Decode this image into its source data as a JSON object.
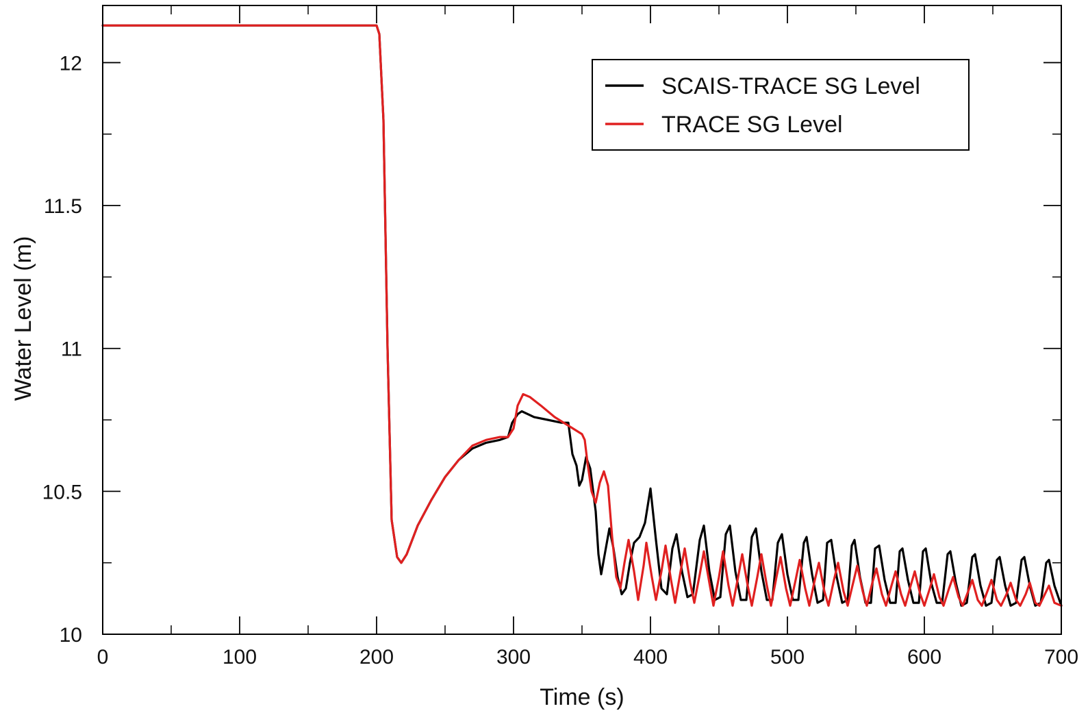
{
  "chart_data": {
    "type": "line",
    "title": "",
    "xlabel": "Time (s)",
    "ylabel": "Water Level (m)",
    "xlim": [
      0,
      700
    ],
    "ylim": [
      10,
      12.2
    ],
    "x_ticks": [
      0,
      100,
      200,
      300,
      400,
      500,
      600,
      700
    ],
    "x_minor_step": 50,
    "y_ticks": [
      10,
      10.5,
      11,
      11.5,
      12
    ],
    "y_tick_labels": [
      "10",
      "10.5",
      "11",
      "11.5",
      "12"
    ],
    "y_minor_step": 0.25,
    "grid": false,
    "legend_position": "top-right",
    "series": [
      {
        "name": "SCAIS-TRACE SG Level",
        "color": "#000000",
        "points": [
          [
            0,
            12.13
          ],
          [
            100,
            12.13
          ],
          [
            195,
            12.13
          ],
          [
            200,
            12.13
          ],
          [
            202,
            12.1
          ],
          [
            205,
            11.8
          ],
          [
            208,
            11.0
          ],
          [
            211,
            10.4
          ],
          [
            215,
            10.27
          ],
          [
            218,
            10.25
          ],
          [
            222,
            10.28
          ],
          [
            230,
            10.38
          ],
          [
            240,
            10.47
          ],
          [
            250,
            10.55
          ],
          [
            260,
            10.61
          ],
          [
            270,
            10.65
          ],
          [
            280,
            10.67
          ],
          [
            290,
            10.68
          ],
          [
            296,
            10.69
          ],
          [
            299,
            10.74
          ],
          [
            303,
            10.77
          ],
          [
            306,
            10.78
          ],
          [
            315,
            10.76
          ],
          [
            325,
            10.75
          ],
          [
            335,
            10.74
          ],
          [
            340,
            10.74
          ],
          [
            343,
            10.63
          ],
          [
            346,
            10.59
          ],
          [
            348,
            10.52
          ],
          [
            350,
            10.54
          ],
          [
            353,
            10.62
          ],
          [
            356,
            10.58
          ],
          [
            360,
            10.43
          ],
          [
            362,
            10.28
          ],
          [
            364,
            10.21
          ],
          [
            367,
            10.29
          ],
          [
            370,
            10.37
          ],
          [
            373,
            10.3
          ],
          [
            376,
            10.2
          ],
          [
            379,
            10.14
          ],
          [
            382,
            10.16
          ],
          [
            385,
            10.25
          ],
          [
            388,
            10.32
          ],
          [
            392,
            10.34
          ],
          [
            396,
            10.39
          ],
          [
            400,
            10.51
          ],
          [
            404,
            10.33
          ],
          [
            408,
            10.16
          ],
          [
            412,
            10.14
          ],
          [
            416,
            10.3
          ],
          [
            419,
            10.35
          ],
          [
            423,
            10.22
          ],
          [
            427,
            10.13
          ],
          [
            431,
            10.14
          ],
          [
            436,
            10.33
          ],
          [
            439,
            10.38
          ],
          [
            443,
            10.22
          ],
          [
            447,
            10.12
          ],
          [
            451,
            10.13
          ],
          [
            455,
            10.35
          ],
          [
            458,
            10.38
          ],
          [
            462,
            10.22
          ],
          [
            466,
            10.12
          ],
          [
            470,
            10.12
          ],
          [
            474,
            10.34
          ],
          [
            477,
            10.37
          ],
          [
            481,
            10.22
          ],
          [
            485,
            10.12
          ],
          [
            489,
            10.12
          ],
          [
            493,
            10.32
          ],
          [
            496,
            10.35
          ],
          [
            500,
            10.21
          ],
          [
            504,
            10.12
          ],
          [
            508,
            10.12
          ],
          [
            512,
            10.32
          ],
          [
            514,
            10.34
          ],
          [
            518,
            10.21
          ],
          [
            522,
            10.11
          ],
          [
            526,
            10.12
          ],
          [
            529,
            10.32
          ],
          [
            532,
            10.33
          ],
          [
            536,
            10.2
          ],
          [
            540,
            10.11
          ],
          [
            544,
            10.12
          ],
          [
            547,
            10.31
          ],
          [
            549,
            10.33
          ],
          [
            553,
            10.2
          ],
          [
            557,
            10.11
          ],
          [
            561,
            10.11
          ],
          [
            564,
            10.3
          ],
          [
            567,
            10.31
          ],
          [
            571,
            10.19
          ],
          [
            575,
            10.11
          ],
          [
            579,
            10.11
          ],
          [
            582,
            10.29
          ],
          [
            584,
            10.3
          ],
          [
            588,
            10.19
          ],
          [
            592,
            10.11
          ],
          [
            596,
            10.11
          ],
          [
            599,
            10.29
          ],
          [
            601,
            10.3
          ],
          [
            605,
            10.18
          ],
          [
            609,
            10.11
          ],
          [
            613,
            10.11
          ],
          [
            617,
            10.28
          ],
          [
            619,
            10.29
          ],
          [
            623,
            10.18
          ],
          [
            627,
            10.1
          ],
          [
            631,
            10.11
          ],
          [
            635,
            10.27
          ],
          [
            637,
            10.28
          ],
          [
            641,
            10.17
          ],
          [
            645,
            10.1
          ],
          [
            649,
            10.11
          ],
          [
            653,
            10.26
          ],
          [
            655,
            10.27
          ],
          [
            659,
            10.17
          ],
          [
            663,
            10.1
          ],
          [
            667,
            10.11
          ],
          [
            671,
            10.26
          ],
          [
            673,
            10.27
          ],
          [
            677,
            10.17
          ],
          [
            681,
            10.1
          ],
          [
            685,
            10.11
          ],
          [
            689,
            10.25
          ],
          [
            691,
            10.26
          ],
          [
            695,
            10.17
          ],
          [
            700,
            10.1
          ]
        ]
      },
      {
        "name": "TRACE SG Level",
        "color": "#e02020",
        "points": [
          [
            0,
            12.13
          ],
          [
            100,
            12.13
          ],
          [
            195,
            12.13
          ],
          [
            200,
            12.13
          ],
          [
            202,
            12.1
          ],
          [
            205,
            11.8
          ],
          [
            208,
            11.0
          ],
          [
            211,
            10.4
          ],
          [
            215,
            10.27
          ],
          [
            218,
            10.25
          ],
          [
            222,
            10.28
          ],
          [
            230,
            10.38
          ],
          [
            240,
            10.47
          ],
          [
            250,
            10.55
          ],
          [
            260,
            10.61
          ],
          [
            270,
            10.66
          ],
          [
            280,
            10.68
          ],
          [
            290,
            10.69
          ],
          [
            296,
            10.69
          ],
          [
            300,
            10.72
          ],
          [
            303,
            10.8
          ],
          [
            307,
            10.84
          ],
          [
            312,
            10.83
          ],
          [
            320,
            10.8
          ],
          [
            330,
            10.76
          ],
          [
            340,
            10.73
          ],
          [
            350,
            10.7
          ],
          [
            352,
            10.68
          ],
          [
            354,
            10.6
          ],
          [
            357,
            10.5
          ],
          [
            360,
            10.46
          ],
          [
            363,
            10.53
          ],
          [
            366,
            10.57
          ],
          [
            369,
            10.52
          ],
          [
            372,
            10.34
          ],
          [
            375,
            10.2
          ],
          [
            378,
            10.16
          ],
          [
            381,
            10.25
          ],
          [
            384,
            10.33
          ],
          [
            388,
            10.22
          ],
          [
            391,
            10.12
          ],
          [
            395,
            10.24
          ],
          [
            397,
            10.32
          ],
          [
            401,
            10.2
          ],
          [
            404,
            10.12
          ],
          [
            408,
            10.22
          ],
          [
            411,
            10.31
          ],
          [
            415,
            10.19
          ],
          [
            418,
            10.11
          ],
          [
            422,
            10.22
          ],
          [
            425,
            10.3
          ],
          [
            429,
            10.18
          ],
          [
            432,
            10.11
          ],
          [
            436,
            10.21
          ],
          [
            439,
            10.29
          ],
          [
            443,
            10.18
          ],
          [
            446,
            10.1
          ],
          [
            450,
            10.2
          ],
          [
            453,
            10.29
          ],
          [
            457,
            10.17
          ],
          [
            460,
            10.1
          ],
          [
            464,
            10.2
          ],
          [
            467,
            10.28
          ],
          [
            471,
            10.17
          ],
          [
            474,
            10.1
          ],
          [
            478,
            10.2
          ],
          [
            481,
            10.28
          ],
          [
            485,
            10.17
          ],
          [
            488,
            10.1
          ],
          [
            492,
            10.2
          ],
          [
            495,
            10.27
          ],
          [
            499,
            10.16
          ],
          [
            502,
            10.1
          ],
          [
            506,
            10.19
          ],
          [
            509,
            10.26
          ],
          [
            513,
            10.16
          ],
          [
            516,
            10.1
          ],
          [
            520,
            10.19
          ],
          [
            523,
            10.25
          ],
          [
            527,
            10.15
          ],
          [
            530,
            10.1
          ],
          [
            534,
            10.19
          ],
          [
            537,
            10.25
          ],
          [
            541,
            10.15
          ],
          [
            544,
            10.1
          ],
          [
            548,
            10.18
          ],
          [
            551,
            10.24
          ],
          [
            555,
            10.15
          ],
          [
            558,
            10.1
          ],
          [
            562,
            10.18
          ],
          [
            565,
            10.23
          ],
          [
            569,
            10.14
          ],
          [
            572,
            10.1
          ],
          [
            576,
            10.17
          ],
          [
            579,
            10.22
          ],
          [
            583,
            10.14
          ],
          [
            586,
            10.1
          ],
          [
            590,
            10.17
          ],
          [
            593,
            10.22
          ],
          [
            597,
            10.14
          ],
          [
            600,
            10.1
          ],
          [
            604,
            10.16
          ],
          [
            607,
            10.21
          ],
          [
            611,
            10.13
          ],
          [
            614,
            10.1
          ],
          [
            618,
            10.16
          ],
          [
            621,
            10.2
          ],
          [
            625,
            10.13
          ],
          [
            628,
            10.1
          ],
          [
            632,
            10.15
          ],
          [
            635,
            10.19
          ],
          [
            639,
            10.12
          ],
          [
            642,
            10.1
          ],
          [
            646,
            10.15
          ],
          [
            649,
            10.19
          ],
          [
            653,
            10.12
          ],
          [
            656,
            10.1
          ],
          [
            660,
            10.14
          ],
          [
            663,
            10.18
          ],
          [
            667,
            10.12
          ],
          [
            670,
            10.1
          ],
          [
            674,
            10.14
          ],
          [
            677,
            10.18
          ],
          [
            681,
            10.11
          ],
          [
            684,
            10.1
          ],
          [
            688,
            10.14
          ],
          [
            691,
            10.17
          ],
          [
            695,
            10.11
          ],
          [
            700,
            10.1
          ]
        ]
      }
    ]
  }
}
